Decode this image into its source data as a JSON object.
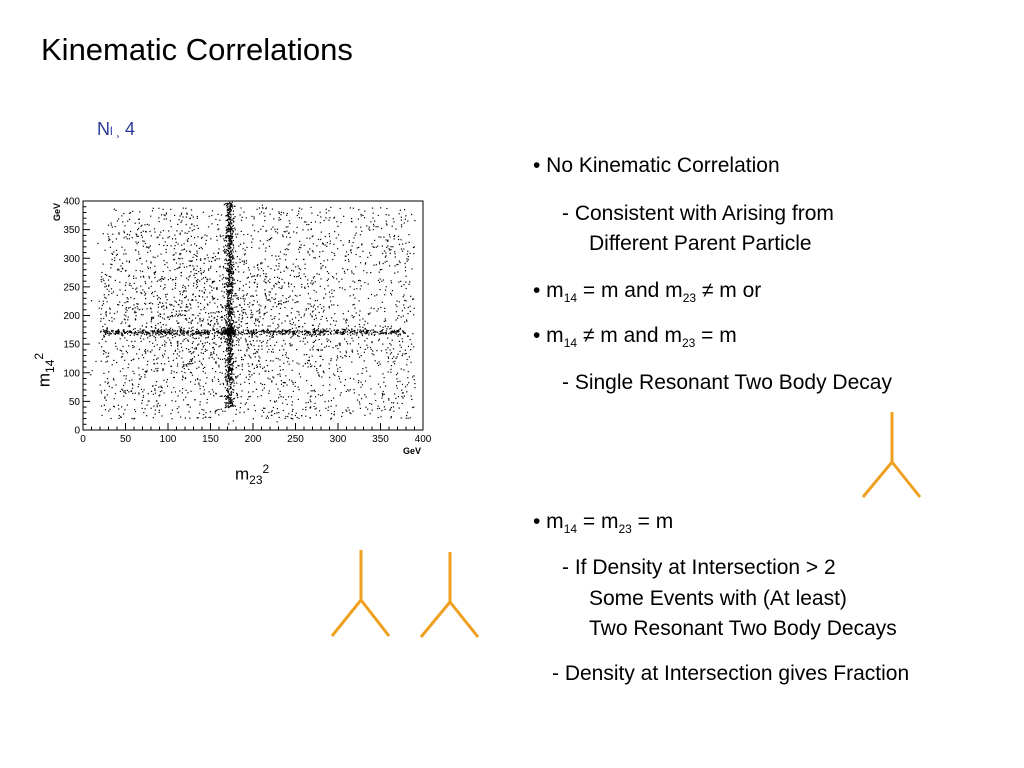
{
  "title": "Kinematic Correlations",
  "n_label": {
    "main": "N",
    "small": "l ¸",
    "value": "4"
  },
  "chart_data": {
    "type": "scatter",
    "title": "",
    "xlabel_main": "m",
    "xlabel_sub": "23",
    "xlabel_sup": "2",
    "ylabel_main": "m",
    "ylabel_sub": "14",
    "ylabel_sup": "2",
    "x_unit": "GeV",
    "y_unit": "GeV",
    "xlim": [
      0,
      400
    ],
    "ylim": [
      0,
      400
    ],
    "x_ticks": [
      "0",
      "50",
      "100",
      "150",
      "200",
      "250",
      "300",
      "350",
      "400"
    ],
    "y_ticks": [
      "0",
      "50",
      "100",
      "150",
      "200",
      "250",
      "300",
      "350",
      "400"
    ],
    "resonance_x": 172,
    "resonance_y": 172,
    "grid": false
  },
  "bullets": {
    "b1": "• No Kinematic Correlation",
    "b1_sub1": "-  Consistent with Arising from",
    "b1_sub2": "Different Parent Particle",
    "b2_pre": "• m",
    "b2_s1": "14",
    "b2_mid": " = m  and  m",
    "b2_s2": "23",
    "b2_end": " ≠ m   or",
    "b3_pre": "• m",
    "b3_s1": "14",
    "b3_mid": " ≠ m  and m",
    "b3_s2": "23",
    "b3_end": " = m",
    "b3_sub": "-  Single Resonant Two Body Decay",
    "b4_pre": "• m",
    "b4_s1": "14",
    "b4_mid": " = m",
    "b4_s2": "23",
    "b4_end": " = m",
    "b4_sub1": "-  If Density at Intersection > 2",
    "b4_sub2": "Some Events with (At least)",
    "b4_sub3": "Two Resonant Two Body  Decays",
    "b5": "-  Density at Intersection gives Fraction"
  },
  "colors": {
    "diagram": "#f0a020",
    "nlabel": "#2b3a9a"
  }
}
